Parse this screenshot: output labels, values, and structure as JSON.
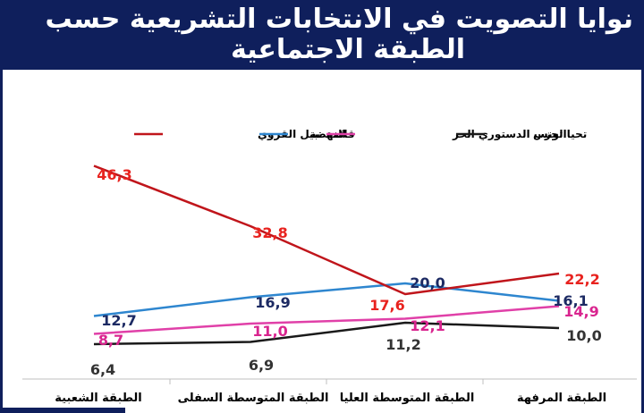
{
  "header": {
    "title_line1": "نوايا التصويت في الانتخابات التشريعية حسب",
    "title_line2": "الطبقة الاجتماعية"
  },
  "chart_data": {
    "type": "line",
    "title": "نوايا التصويت في الانتخابات التشريعية حسب الطبقة الاجتماعية",
    "categories": [
      "الطبقة الشعبية",
      "الطبقة المتوسطة  السفلى",
      "الطبقة المتوسطة العليا",
      "الطبقة المرفهة"
    ],
    "series": [
      {
        "name": "قائمة نبيل القروي",
        "color": "#c0151b",
        "label_color": "#e8231f",
        "values": [
          46.3,
          32.8,
          17.6,
          22.2
        ],
        "labels": [
          "46,3",
          "32,8",
          "17,6",
          "22,2"
        ]
      },
      {
        "name": "النهضة",
        "color": "#2e86cf",
        "label_color": "#1c2a63",
        "values": [
          12.7,
          16.9,
          20.0,
          16.1
        ],
        "labels": [
          "12,7",
          "16,9",
          "20,0",
          "16,1"
        ]
      },
      {
        "name": "الحزب الدستوري الحر",
        "color": "#e040a8",
        "label_color": "#d9258f",
        "values": [
          8.7,
          11.0,
          12.1,
          14.9
        ],
        "labels": [
          "8,7",
          "11,0",
          "12,1",
          "14,9"
        ]
      },
      {
        "name": "تحيا تونس",
        "color": "#1a1a1a",
        "label_color": "#333333",
        "values": [
          6.4,
          6.9,
          11.2,
          10.0
        ],
        "labels": [
          "6,4",
          "6,9",
          "11,2",
          "10,0"
        ]
      }
    ],
    "legend_position": "top",
    "grid": false,
    "ylim": [
      0,
      50
    ]
  }
}
